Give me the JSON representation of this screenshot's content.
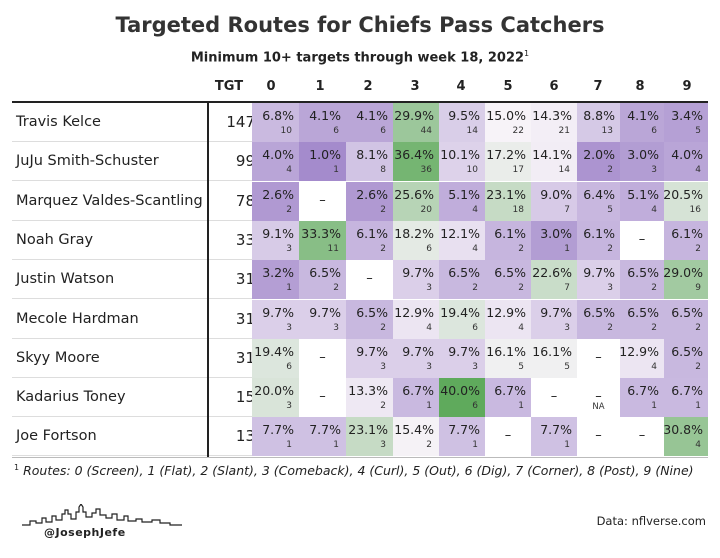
{
  "title": "Targeted Routes for Chiefs Pass Catchers",
  "subtitle": "Minimum 10+ targets through week 18, 2022",
  "subtitle_sup": "1",
  "colors": {
    "low": "#9b7fc7",
    "mid": "#f7f3f8",
    "high": "#5faa5c"
  },
  "chart_data": {
    "type": "table",
    "columns": [
      "TGT",
      "0",
      "1",
      "2",
      "3",
      "4",
      "5",
      "6",
      "7",
      "8",
      "9"
    ],
    "rows": [
      {
        "name": "Travis Kelce",
        "tgt": "147",
        "cells": [
          [
            "6.8%",
            "10"
          ],
          [
            "4.1%",
            "6"
          ],
          [
            "4.1%",
            "6"
          ],
          [
            "29.9%",
            "44"
          ],
          [
            "9.5%",
            "14"
          ],
          [
            "15.0%",
            "22"
          ],
          [
            "14.3%",
            "21"
          ],
          [
            "8.8%",
            "13"
          ],
          [
            "4.1%",
            "6"
          ],
          [
            "3.4%",
            "5"
          ]
        ]
      },
      {
        "name": "JuJu Smith-Schuster",
        "tgt": "99",
        "cells": [
          [
            "4.0%",
            "4"
          ],
          [
            "1.0%",
            "1"
          ],
          [
            "8.1%",
            "8"
          ],
          [
            "36.4%",
            "36"
          ],
          [
            "10.1%",
            "10"
          ],
          [
            "17.2%",
            "17"
          ],
          [
            "14.1%",
            "14"
          ],
          [
            "2.0%",
            "2"
          ],
          [
            "3.0%",
            "3"
          ],
          [
            "4.0%",
            "4"
          ]
        ]
      },
      {
        "name": "Marquez Valdes-Scantling",
        "tgt": "78",
        "cells": [
          [
            "2.6%",
            "2"
          ],
          [
            "–",
            ""
          ],
          [
            "2.6%",
            "2"
          ],
          [
            "25.6%",
            "20"
          ],
          [
            "5.1%",
            "4"
          ],
          [
            "23.1%",
            "18"
          ],
          [
            "9.0%",
            "7"
          ],
          [
            "6.4%",
            "5"
          ],
          [
            "5.1%",
            "4"
          ],
          [
            "20.5%",
            "16"
          ]
        ]
      },
      {
        "name": "Noah Gray",
        "tgt": "33",
        "cells": [
          [
            "9.1%",
            "3"
          ],
          [
            "33.3%",
            "11"
          ],
          [
            "6.1%",
            "2"
          ],
          [
            "18.2%",
            "6"
          ],
          [
            "12.1%",
            "4"
          ],
          [
            "6.1%",
            "2"
          ],
          [
            "3.0%",
            "1"
          ],
          [
            "6.1%",
            "2"
          ],
          [
            "–",
            ""
          ],
          [
            "6.1%",
            "2"
          ]
        ]
      },
      {
        "name": "Justin Watson",
        "tgt": "31",
        "cells": [
          [
            "3.2%",
            "1"
          ],
          [
            "6.5%",
            "2"
          ],
          [
            "–",
            ""
          ],
          [
            "9.7%",
            "3"
          ],
          [
            "6.5%",
            "2"
          ],
          [
            "6.5%",
            "2"
          ],
          [
            "22.6%",
            "7"
          ],
          [
            "9.7%",
            "3"
          ],
          [
            "6.5%",
            "2"
          ],
          [
            "29.0%",
            "9"
          ]
        ]
      },
      {
        "name": "Mecole Hardman",
        "tgt": "31",
        "cells": [
          [
            "9.7%",
            "3"
          ],
          [
            "9.7%",
            "3"
          ],
          [
            "6.5%",
            "2"
          ],
          [
            "12.9%",
            "4"
          ],
          [
            "19.4%",
            "6"
          ],
          [
            "12.9%",
            "4"
          ],
          [
            "9.7%",
            "3"
          ],
          [
            "6.5%",
            "2"
          ],
          [
            "6.5%",
            "2"
          ],
          [
            "6.5%",
            "2"
          ]
        ]
      },
      {
        "name": "Skyy Moore",
        "tgt": "31",
        "cells": [
          [
            "19.4%",
            "6"
          ],
          [
            "–",
            ""
          ],
          [
            "9.7%",
            "3"
          ],
          [
            "9.7%",
            "3"
          ],
          [
            "9.7%",
            "3"
          ],
          [
            "16.1%",
            "5"
          ],
          [
            "16.1%",
            "5"
          ],
          [
            "–",
            ""
          ],
          [
            "12.9%",
            "4"
          ],
          [
            "6.5%",
            "2"
          ]
        ]
      },
      {
        "name": "Kadarius Toney",
        "tgt": "15",
        "cells": [
          [
            "20.0%",
            "3"
          ],
          [
            "–",
            ""
          ],
          [
            "13.3%",
            "2"
          ],
          [
            "6.7%",
            "1"
          ],
          [
            "40.0%",
            "6"
          ],
          [
            "6.7%",
            "1"
          ],
          [
            "–",
            ""
          ],
          [
            "–",
            "NA"
          ],
          [
            "6.7%",
            "1"
          ],
          [
            "6.7%",
            "1"
          ]
        ]
      },
      {
        "name": "Joe Fortson",
        "tgt": "13",
        "cells": [
          [
            "7.7%",
            "1"
          ],
          [
            "7.7%",
            "1"
          ],
          [
            "23.1%",
            "3"
          ],
          [
            "15.4%",
            "2"
          ],
          [
            "7.7%",
            "1"
          ],
          [
            "–",
            ""
          ],
          [
            "7.7%",
            "1"
          ],
          [
            "–",
            ""
          ],
          [
            "–",
            ""
          ],
          [
            "30.8%",
            "4"
          ]
        ]
      }
    ]
  },
  "footnote": {
    "marker": "1",
    "text": "Routes: 0 (Screen), 1 (Flat), 2 (Slant), 3 (Comeback), 4 (Curl), 5 (Out), 6 (Dig), 7 (Corner), 8 (Post), 9 (Nine)"
  },
  "handle": "@JosephJefe",
  "source": "Data: nflverse.com"
}
